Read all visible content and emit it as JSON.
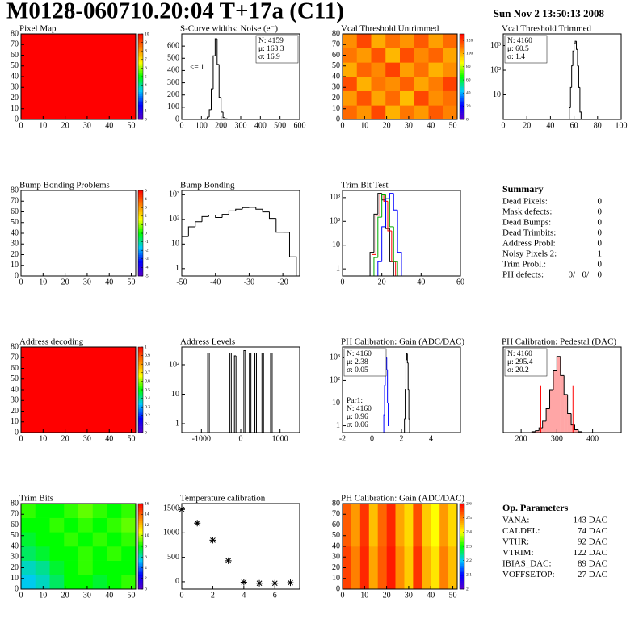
{
  "header": {
    "title": "M0128-060710.20:04 T+17a (C11)",
    "date": "Sun Nov  2 13:50:13 2008"
  },
  "palette": [
    "#5a00c8",
    "#0000ff",
    "#00c8ff",
    "#00ff00",
    "#ffff00",
    "#ff8000",
    "#ff0000"
  ],
  "chart_data": [
    {
      "type": "heatmap",
      "title": "Pixel Map",
      "xlim": [
        0,
        52
      ],
      "ylim": [
        0,
        80
      ],
      "xticks": [
        0,
        10,
        20,
        30,
        40,
        50
      ],
      "yticks": [
        0,
        10,
        20,
        30,
        40,
        50,
        60,
        70,
        80
      ],
      "zlim": [
        0,
        10
      ],
      "zticks": [
        0,
        1,
        2,
        3,
        4,
        5,
        6,
        7,
        8,
        9,
        10
      ],
      "values": [
        [
          10
        ]
      ]
    },
    {
      "type": "histogram",
      "title": "S-Curve widths: Noise (e⁻)",
      "xlim": [
        0,
        600
      ],
      "ylim": [
        0,
        700
      ],
      "xticks": [
        0,
        100,
        200,
        300,
        400,
        500,
        600
      ],
      "yticks": [
        0,
        100,
        200,
        300,
        400,
        500,
        600
      ],
      "log_y": false,
      "annotation": "<= 1",
      "series": [
        {
          "color": "#000000",
          "bins": [
            120,
            130,
            140,
            150,
            160,
            170,
            180,
            190,
            200,
            210,
            220,
            230
          ],
          "values": [
            5,
            20,
            80,
            250,
            520,
            660,
            450,
            180,
            60,
            15,
            5
          ]
        }
      ],
      "stats": [
        {
          "corner": "top-right",
          "border": true,
          "lines": [
            {
              "text": "N: 4159",
              "color": "#000000"
            },
            {
              "text": "μ: 163.3",
              "color": "#000000"
            },
            {
              "text": "σ: 16.9",
              "color": "#000000"
            }
          ]
        }
      ]
    },
    {
      "type": "heatmap",
      "title": "Vcal Threshold Untrimmed",
      "xlim": [
        0,
        52
      ],
      "ylim": [
        0,
        80
      ],
      "xticks": [
        0,
        10,
        20,
        30,
        40,
        50
      ],
      "yticks": [
        0,
        10,
        20,
        30,
        40,
        50,
        60,
        70,
        80
      ],
      "zlim": [
        0,
        130
      ],
      "zticks": [
        0,
        20,
        40,
        60,
        80,
        100,
        120
      ],
      "values": [
        [
          112,
          105,
          118,
          100,
          110,
          104,
          115,
          108
        ],
        [
          104,
          116,
          102,
          112,
          98,
          118,
          106,
          111
        ],
        [
          117,
          100,
          110,
          106,
          114,
          102,
          109,
          119
        ],
        [
          101,
          113,
          107,
          119,
          103,
          111,
          100,
          106
        ],
        [
          110,
          104,
          116,
          99,
          117,
          107,
          113,
          102
        ],
        [
          106,
          118,
          101,
          111,
          105,
          115,
          103,
          112
        ]
      ]
    },
    {
      "type": "histogram",
      "title": "Vcal Threshold Trimmed",
      "xlim": [
        0,
        100
      ],
      "ylim": [
        1,
        3000
      ],
      "xticks": [
        0,
        20,
        40,
        60,
        80,
        100
      ],
      "yticks": [
        10,
        {
          "value": 100,
          "label": "10²"
        },
        {
          "value": 1000,
          "label": "10³"
        }
      ],
      "log_y": true,
      "series": [
        {
          "color": "#000000",
          "bins": [
            55,
            56,
            57,
            58,
            59,
            60,
            61,
            62,
            63,
            64,
            65,
            66
          ],
          "values": [
            1,
            3,
            20,
            150,
            600,
            1200,
            1500,
            700,
            150,
            20,
            2
          ]
        }
      ],
      "stats": [
        {
          "corner": "top-left",
          "border": true,
          "lines": [
            {
              "text": "N: 4160",
              "color": "#000000"
            },
            {
              "text": "μ: 60.5",
              "color": "#000000"
            },
            {
              "text": "σ:  1.4",
              "color": "#000000"
            }
          ]
        }
      ]
    },
    {
      "type": "heatmap",
      "title": "Bump Bonding Problems",
      "xlim": [
        0,
        52
      ],
      "ylim": [
        0,
        80
      ],
      "xticks": [
        0,
        10,
        20,
        30,
        40,
        50
      ],
      "yticks": [
        0,
        10,
        20,
        30,
        40,
        50,
        60,
        70,
        80
      ],
      "zlim": [
        -5,
        5
      ],
      "zticks": [
        -5,
        -4,
        -3,
        -2,
        -1,
        0,
        1,
        2,
        3,
        4,
        5
      ],
      "values": []
    },
    {
      "type": "histogram",
      "title": "Bump Bonding",
      "xlim": [
        -50,
        -15
      ],
      "ylim": [
        0.5,
        1500
      ],
      "xticks": [
        -50,
        -40,
        -30,
        -20
      ],
      "yticks": [
        1,
        10,
        {
          "value": 100,
          "label": "10²"
        },
        {
          "value": 1000,
          "label": "10³"
        }
      ],
      "log_y": true,
      "series": [
        {
          "color": "#000000",
          "bins": [
            -50,
            -48,
            -46,
            -44,
            -42,
            -40,
            -38,
            -36,
            -34,
            -32,
            -30,
            -28,
            -26,
            -24,
            -22,
            -20,
            -18,
            -16
          ],
          "values": [
            20,
            50,
            80,
            130,
            150,
            120,
            160,
            220,
            260,
            300,
            310,
            260,
            200,
            110,
            30,
            30,
            3
          ]
        }
      ]
    },
    {
      "type": "histogram",
      "title": "Trim Bit Test",
      "xlim": [
        0,
        60
      ],
      "ylim": [
        0.5,
        2000
      ],
      "xticks": [
        0,
        20,
        40,
        60
      ],
      "yticks": [
        1,
        10,
        {
          "value": 100,
          "label": "10²"
        },
        {
          "value": 1000,
          "label": "10³"
        }
      ],
      "log_y": true,
      "series": [
        {
          "color": "#000000",
          "bins": [
            14,
            16,
            18,
            20,
            22,
            24,
            26
          ],
          "values": [
            5,
            200,
            1500,
            800,
            50,
            2
          ]
        },
        {
          "color": "#ff0000",
          "bins": [
            15,
            17,
            19,
            21,
            23,
            25,
            27
          ],
          "values": [
            4,
            180,
            1400,
            700,
            40,
            2
          ]
        },
        {
          "color": "#00aa00",
          "bins": [
            16,
            18,
            20,
            22,
            24,
            26,
            28
          ],
          "values": [
            3,
            150,
            1300,
            900,
            60,
            2
          ]
        },
        {
          "color": "#0000ff",
          "bins": [
            18,
            20,
            22,
            24,
            26,
            28,
            30
          ],
          "values": [
            2,
            60,
            900,
            1500,
            300,
            5
          ]
        }
      ]
    },
    {
      "type": "heatmap",
      "title": "Address decoding",
      "xlim": [
        0,
        52
      ],
      "ylim": [
        0,
        80
      ],
      "xticks": [
        0,
        10,
        20,
        30,
        40,
        50
      ],
      "yticks": [
        0,
        10,
        20,
        30,
        40,
        50,
        60,
        70,
        80
      ],
      "zlim": [
        0,
        1
      ],
      "zticks": [
        0,
        0.1,
        0.2,
        0.3,
        0.4,
        0.5,
        0.6,
        0.7,
        0.8,
        0.9,
        1
      ],
      "values": [
        [
          1
        ]
      ]
    },
    {
      "type": "histogram",
      "title": "Address Levels",
      "xlim": [
        -1500,
        1500
      ],
      "ylim": [
        0.5,
        400
      ],
      "xticks": [
        -1000,
        0,
        1000
      ],
      "yticks": [
        1,
        10,
        {
          "value": 100,
          "label": "10²"
        }
      ],
      "log_y": true,
      "series": [
        {
          "color": "#000000",
          "bins": [
            -840,
            -800,
            -280,
            -240,
            -160,
            -120,
            80,
            120,
            220,
            260,
            360,
            400,
            540,
            580,
            760,
            800
          ],
          "values": [
            250,
            0,
            250,
            0,
            200,
            0,
            300,
            0,
            250,
            0,
            250,
            0,
            250,
            0,
            250
          ]
        }
      ]
    },
    {
      "type": "histogram",
      "title": "PH Calibration: Gain (ADC/DAC)",
      "xlim": [
        -2,
        6
      ],
      "ylim": [
        0.5,
        3000
      ],
      "xticks": [
        -2,
        0,
        2,
        4
      ],
      "yticks": [
        1,
        10,
        {
          "value": 100,
          "label": "10²"
        },
        {
          "value": 1000,
          "label": "10³"
        }
      ],
      "log_y": true,
      "series": [
        {
          "color": "#000000",
          "bins": [
            2.2,
            2.25,
            2.3,
            2.35,
            2.4,
            2.45,
            2.5,
            2.55
          ],
          "values": [
            2,
            40,
            800,
            1500,
            600,
            40,
            2
          ]
        },
        {
          "color": "#0000ff",
          "bins": [
            0.8,
            0.85,
            0.9,
            0.95,
            1.0,
            1.05,
            1.1,
            1.15
          ],
          "values": [
            3,
            60,
            900,
            1000,
            300,
            10,
            1
          ]
        }
      ],
      "stats": [
        {
          "corner": "top-left",
          "border": true,
          "lines": [
            {
              "text": "N: 4160",
              "color": "#000000"
            },
            {
              "text": "μ: 2.38",
              "color": "#000000"
            },
            {
              "text": "σ: 0.05",
              "color": "#000000"
            }
          ]
        },
        {
          "corner": "bottom-left",
          "border": false,
          "lines": [
            {
              "text": "Par1:",
              "color": "#0000ff"
            },
            {
              "text": "N: 4160",
              "color": "#0000ff"
            },
            {
              "text": "μ: 0.96",
              "color": "#0000ff"
            },
            {
              "text": "σ: 0.06",
              "color": "#0000ff"
            }
          ]
        }
      ]
    },
    {
      "type": "histogram",
      "title": "PH Calibration: Pedestal (DAC)",
      "xlim": [
        150,
        480
      ],
      "ylim": [
        0,
        90
      ],
      "xticks": [
        200,
        300,
        400
      ],
      "yticks": [],
      "log_y": false,
      "series": [
        {
          "color": "#000000",
          "fill_color": "#ff0000",
          "bins": [
            230,
            240,
            250,
            260,
            270,
            280,
            290,
            300,
            310,
            320,
            330,
            340,
            350,
            360,
            370
          ],
          "values": [
            1,
            2,
            5,
            12,
            25,
            45,
            65,
            80,
            60,
            40,
            20,
            8,
            3,
            1
          ]
        }
      ],
      "cut_lines": [
        255,
        345
      ],
      "cut_color": "#ff0000",
      "stats": [
        {
          "corner": "top-left",
          "border": true,
          "lines": [
            {
              "text": "N: 4160",
              "color": "#000000"
            },
            {
              "text": "μ: 295.4",
              "color": "#ff0000"
            },
            {
              "text": "σ: 20.2",
              "color": "#ff0000"
            }
          ]
        }
      ]
    },
    {
      "type": "heatmap",
      "title": "Trim Bits",
      "xlim": [
        0,
        52
      ],
      "ylim": [
        0,
        80
      ],
      "xticks": [
        0,
        10,
        20,
        30,
        40,
        50
      ],
      "yticks": [
        0,
        10,
        20,
        30,
        40,
        50,
        60,
        70,
        80
      ],
      "zlim": [
        0,
        16
      ],
      "zticks": [
        0,
        2,
        4,
        6,
        8,
        10,
        12,
        14,
        16
      ],
      "values": [
        [
          5.5,
          6,
          7,
          8,
          8,
          7.5,
          8,
          8.5
        ],
        [
          6,
          6.5,
          7.5,
          8,
          8.5,
          8,
          8,
          8
        ],
        [
          7,
          7.5,
          8,
          8,
          8.5,
          8,
          8.5,
          8
        ],
        [
          7.5,
          8,
          8,
          8.5,
          8,
          8.5,
          8,
          8.5
        ],
        [
          8,
          8,
          8.5,
          8,
          8.5,
          8,
          8.5,
          9
        ],
        [
          8.5,
          8,
          8,
          8.5,
          9,
          8.5,
          8,
          8.5
        ]
      ]
    },
    {
      "type": "scatter",
      "title": "Temperature calibration",
      "xlim": [
        0,
        7.6
      ],
      "ylim": [
        -150,
        1600
      ],
      "xticks": [
        0,
        2,
        4,
        6
      ],
      "yticks": [
        0,
        500,
        1000,
        1500
      ],
      "color": "#000000",
      "x": [
        0,
        1,
        2,
        3,
        4,
        5,
        6,
        7
      ],
      "values": [
        1480,
        1200,
        850,
        430,
        -10,
        -30,
        -30,
        -20
      ]
    },
    {
      "type": "heatmap",
      "title": "PH Calibration: Gain (ADC/DAC)",
      "xlim": [
        0,
        52
      ],
      "ylim": [
        0,
        80
      ],
      "xticks": [
        0,
        10,
        20,
        30,
        40,
        50
      ],
      "yticks": [
        0,
        10,
        20,
        30,
        40,
        50,
        60,
        70,
        80
      ],
      "zlim": [
        2,
        2.6
      ],
      "zticks": [
        2,
        2.1,
        2.2,
        2.3,
        2.4,
        2.5,
        2.6
      ],
      "values": [
        [
          2.55,
          2.5,
          2.57,
          2.47,
          2.53,
          2.58,
          2.49,
          2.44,
          2.56,
          2.46,
          2.42,
          2.5,
          2.45
        ],
        [
          2.53,
          2.48,
          2.56,
          2.45,
          2.52,
          2.57,
          2.47,
          2.43,
          2.54,
          2.44,
          2.4,
          2.48,
          2.43
        ]
      ]
    }
  ],
  "summary": {
    "title": "Summary",
    "rows": [
      {
        "label": "Dead Pixels:",
        "value": 0
      },
      {
        "label": "Mask defects:",
        "value": 0
      },
      {
        "label": "Dead Bumps:",
        "value": 0
      },
      {
        "label": "Dead Trimbits:",
        "value": 0
      },
      {
        "label": "Address Probl:",
        "value": 0
      },
      {
        "label": "Noisy Pixels 2:",
        "value": 1
      },
      {
        "label": "Trim Probl.:",
        "value": 0
      },
      {
        "label": "PH defects:",
        "parts": [
          {
            "text": "0/",
            "color": "#000000"
          },
          {
            "text": "0/",
            "color": "#ff0000"
          },
          {
            "text": "0",
            "color": "#0000ff"
          }
        ]
      }
    ]
  },
  "op_parameters": {
    "title": "Op. Parameters",
    "rows": [
      {
        "label": "VANA:",
        "value": "143 DAC"
      },
      {
        "label": "CALDEL:",
        "value": "74 DAC"
      },
      {
        "label": "VTHR:",
        "value": "92 DAC"
      },
      {
        "label": "VTRIM:",
        "value": "122 DAC"
      },
      {
        "label": "IBIAS_DAC:",
        "value": "89 DAC"
      },
      {
        "label": "VOFFSETOP:",
        "value": "27 DAC"
      }
    ]
  }
}
